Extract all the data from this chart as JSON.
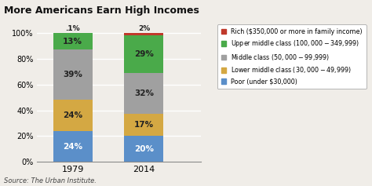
{
  "title": "More Americans Earn High Incomes",
  "years": [
    "1979",
    "2014"
  ],
  "legend_labels": [
    "Rich ($350,000 or more in family income)",
    "Upper middle class ($100,000-$349,999)",
    "Middle class ($50,000-$99,999)",
    "Lower middle class ($30,000-$49,999)",
    "Poor (under $30,000)"
  ],
  "values": {
    "1979": [
      24,
      24,
      39,
      13,
      0.1
    ],
    "2014": [
      20,
      17,
      32,
      29,
      2
    ]
  },
  "colors": [
    "#5b8fc9",
    "#d4a843",
    "#a0a0a0",
    "#4aaa4a",
    "#c0392b"
  ],
  "bar_labels": {
    "1979": [
      "24%",
      "24%",
      "39%",
      "13%",
      ".1%"
    ],
    "2014": [
      "20%",
      "17%",
      "32%",
      "29%",
      "2%"
    ]
  },
  "source": "Source: The Urban Institute.",
  "background_color": "#f0ede8",
  "plot_bg_color": "#f0ede8",
  "ylabel_ticks": [
    0,
    20,
    40,
    60,
    80,
    100
  ],
  "ylim": [
    0,
    104
  ],
  "bar_width": 0.55,
  "x_positions": [
    1,
    2
  ]
}
